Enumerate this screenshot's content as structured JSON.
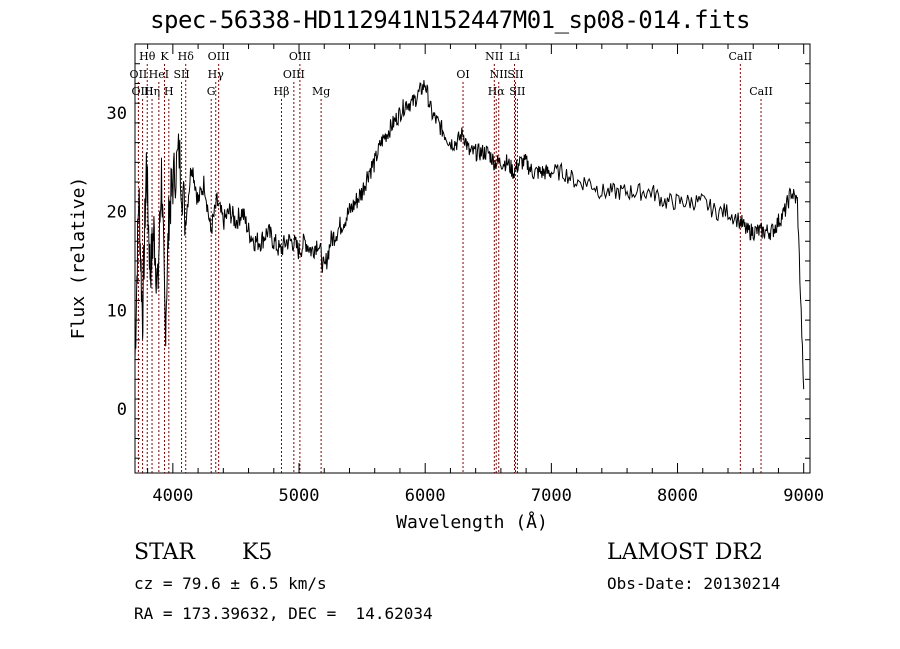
{
  "chart_data": {
    "type": "line",
    "title": "spec-56338-HD112941N152447M01_sp08-014.fits",
    "xlabel": "Wavelength (Å)",
    "ylabel": "Flux (relative)",
    "xlim": [
      3700,
      9050
    ],
    "ylim": [
      -6.5,
      37
    ],
    "xticks": [
      4000,
      5000,
      6000,
      7000,
      8000,
      9000
    ],
    "yticks": [
      0,
      10,
      20,
      30
    ],
    "grid": false,
    "series": [
      {
        "x": [
          3700,
          3730,
          3760,
          3790,
          3820,
          3850,
          3880,
          3910,
          3940,
          3970,
          4000,
          4050,
          4100,
          4150,
          4200,
          4250,
          4300,
          4350,
          4400,
          4450,
          4500,
          4550,
          4600,
          4650,
          4700,
          4750,
          4800,
          4850,
          4900,
          4950,
          5000,
          5050,
          5100,
          5150,
          5200,
          5250,
          5300,
          5350,
          5400,
          5450,
          5500,
          5550,
          5600,
          5650,
          5700,
          5750,
          5800,
          5850,
          5900,
          5950,
          6000,
          6050,
          6100,
          6150,
          6200,
          6250,
          6300,
          6350,
          6400,
          6450,
          6500,
          6550,
          6600,
          6650,
          6700,
          6750,
          6800,
          6850,
          6900,
          6950,
          7000,
          7100,
          7200,
          7300,
          7400,
          7500,
          7600,
          7700,
          7800,
          7900,
          8000,
          8100,
          8200,
          8300,
          8400,
          8500,
          8550,
          8600,
          8650,
          8700,
          8750,
          8800,
          8850,
          8900,
          8950,
          9000
        ],
        "y": [
          5,
          22,
          9,
          25,
          14,
          18,
          12,
          24,
          8,
          20,
          23,
          26,
          19,
          25,
          21,
          23,
          18,
          21,
          19,
          20,
          19,
          20,
          18,
          17,
          17,
          18,
          17,
          16,
          17,
          17,
          16,
          17,
          16,
          17,
          14,
          17,
          18,
          19,
          20,
          21,
          22,
          24,
          25,
          27,
          28,
          29,
          30,
          31,
          31,
          32,
          33,
          30,
          29,
          28,
          27,
          27,
          28,
          26,
          26,
          26,
          26,
          25,
          25,
          25,
          24,
          25,
          25,
          24,
          24,
          24,
          24,
          24,
          23,
          23,
          22,
          22,
          22,
          22,
          22,
          21,
          21,
          21,
          21,
          20,
          20,
          19,
          18,
          18,
          18,
          18,
          18,
          19,
          20,
          22,
          21,
          2
        ]
      }
    ],
    "lines": [
      {
        "label": "Hθ",
        "x": 3797,
        "row": 0
      },
      {
        "label": "K",
        "x": 3934,
        "row": 0
      },
      {
        "label": "Hδ",
        "x": 4102,
        "row": 0
      },
      {
        "label": "OIII",
        "x": 4363,
        "row": 0
      },
      {
        "label": "OIII",
        "x": 5007,
        "row": 0
      },
      {
        "label": "NII",
        "x": 6548,
        "row": 0
      },
      {
        "label": "Li",
        "x": 6708,
        "row": 0
      },
      {
        "label": "CaII",
        "x": 8498,
        "row": 0
      },
      {
        "label": "OII",
        "x": 3727,
        "row": 1
      },
      {
        "label": "HeI",
        "x": 3889,
        "row": 1
      },
      {
        "label": "SII",
        "x": 4069,
        "row": 1
      },
      {
        "label": "Hγ",
        "x": 4340,
        "row": 1
      },
      {
        "label": "OIII",
        "x": 4959,
        "row": 1
      },
      {
        "label": "OI",
        "x": 6300,
        "row": 1
      },
      {
        "label": "NII",
        "x": 6583,
        "row": 1
      },
      {
        "label": "SII",
        "x": 6716,
        "row": 1
      },
      {
        "label": "OIII",
        "x": 3760,
        "row": 2
      },
      {
        "label": "Hη",
        "x": 3835,
        "row": 2
      },
      {
        "label": "H",
        "x": 3968,
        "row": 2
      },
      {
        "label": "G",
        "x": 4304,
        "row": 2
      },
      {
        "label": "Hβ",
        "x": 4861,
        "row": 2
      },
      {
        "label": "Mg",
        "x": 5175,
        "row": 2
      },
      {
        "label": "Hα",
        "x": 6563,
        "row": 2
      },
      {
        "label": "SII",
        "x": 6731,
        "row": 2
      },
      {
        "label": "CaII",
        "x": 8662,
        "row": 2
      }
    ],
    "line_color": "#8b0000"
  },
  "info": {
    "object_class": "STAR",
    "subclass": "K5",
    "survey": "LAMOST DR2",
    "cz": "cz = 79.6 ± 6.5 km/s",
    "obs_date": "Obs-Date: 20130214",
    "coords": "RA = 173.39632, DEC =  14.62034"
  }
}
